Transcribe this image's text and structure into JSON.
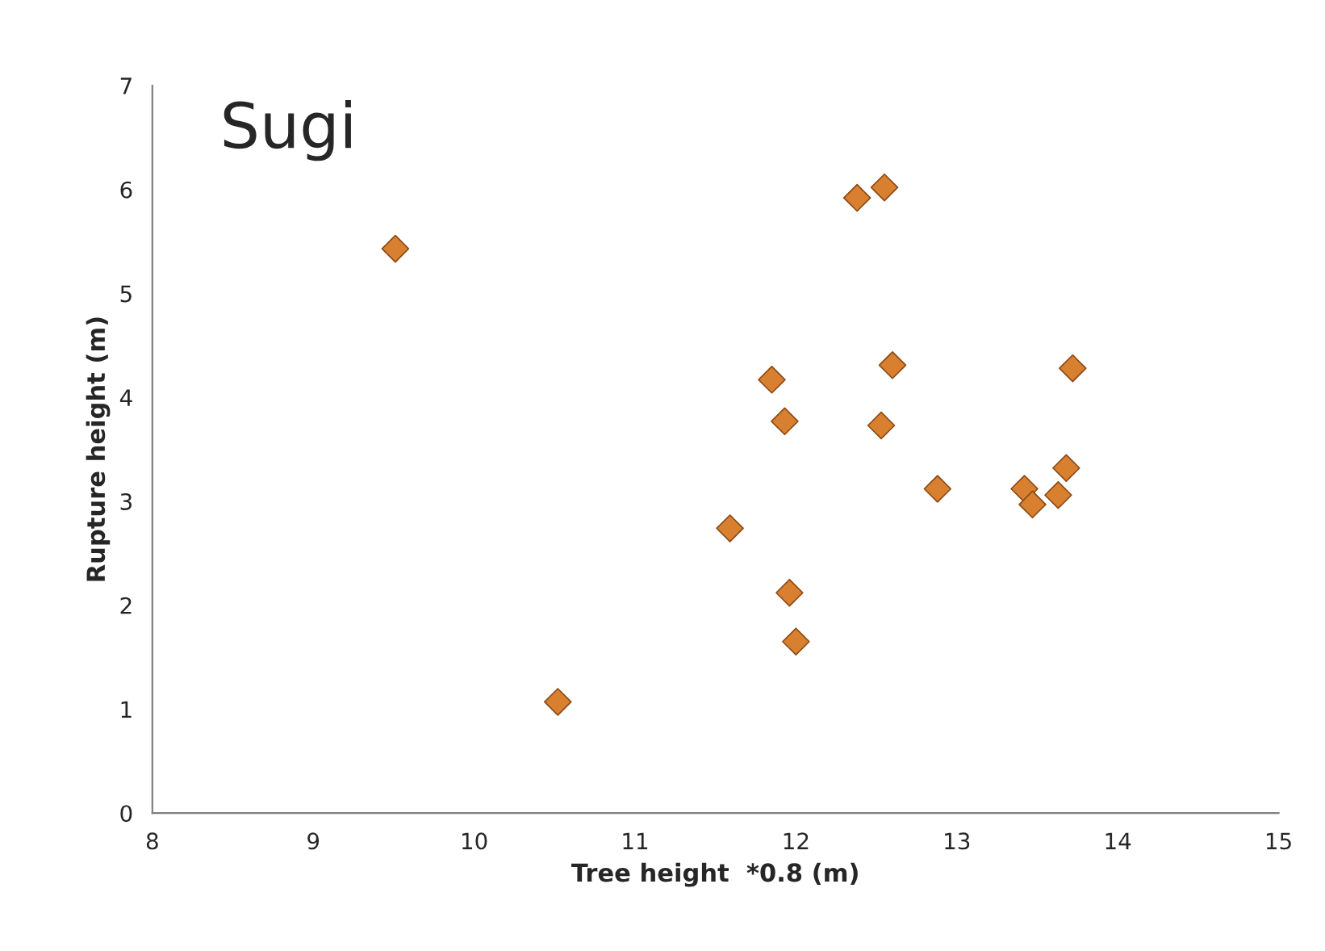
{
  "chart_data": {
    "type": "scatter",
    "title": "Sugi",
    "xlabel": "Tree height  *0.8 (m)",
    "ylabel": "Rupture height (m)",
    "x": [
      9.51,
      10.52,
      12.38,
      12.55,
      11.85,
      12.6,
      13.72,
      11.93,
      12.53,
      13.68,
      12.88,
      13.42,
      13.47,
      13.63,
      11.59,
      11.96,
      12.0
    ],
    "values": [
      5.43,
      1.07,
      5.92,
      6.02,
      4.17,
      4.31,
      4.28,
      3.77,
      3.73,
      3.32,
      3.12,
      3.12,
      2.97,
      3.06,
      2.74,
      2.12,
      1.65
    ],
    "color": "#d98030",
    "marker": "diamond",
    "xlim": [
      8,
      15
    ],
    "xticks": [
      8,
      9,
      10,
      11,
      12,
      13,
      14,
      15
    ],
    "ylim": [
      0,
      7
    ],
    "yticks": [
      0,
      1,
      2,
      3,
      4,
      5,
      6,
      7
    ],
    "grid": false
  }
}
